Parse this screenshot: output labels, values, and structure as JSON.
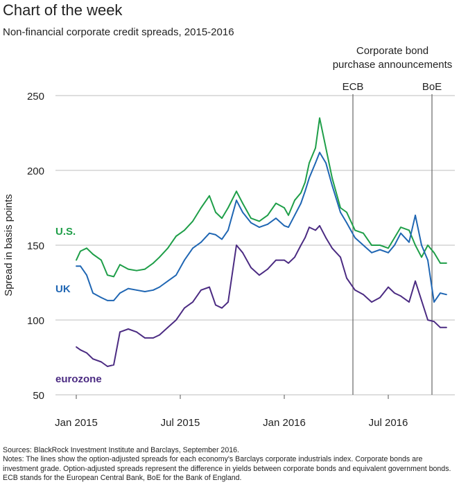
{
  "header": {
    "title": "Chart of the week",
    "subtitle": "Non-financial corporate credit spreads, 2015-2016"
  },
  "annotation": {
    "heading_line1": "Corporate bond",
    "heading_line2": "purchase announcements",
    "markers": [
      {
        "label": "ECB",
        "x": 2016.33
      },
      {
        "label": "BoE",
        "x": 2016.71
      }
    ]
  },
  "footer": {
    "sources": "Sources: BlackRock Investment Institute and Barclays, September 2016.",
    "notes": "Notes: The lines show the option-adjusted spreads for each economy's Barclays corporate industrials index. Corporate bonds are investment grade. Option-adjusted spreads represent the difference in yields between corporate bonds and equivalent government bonds. ECB stands for the European Central Bank, BoE for the Bank of England."
  },
  "chart_data": {
    "type": "line",
    "title": "Chart of the week",
    "subtitle": "Non-financial corporate credit spreads, 2015-2016",
    "xlabel": "",
    "ylabel": "Spread in basis points",
    "xlim": [
      2014.9,
      2016.82
    ],
    "ylim": [
      50,
      250
    ],
    "yticks": [
      50,
      100,
      150,
      200,
      250
    ],
    "xticks": [
      {
        "value": 2015.0,
        "label": "Jan 2015"
      },
      {
        "value": 2015.5,
        "label": "Jul 2015"
      },
      {
        "value": 2016.0,
        "label": "Jan 2016"
      },
      {
        "value": 2016.5,
        "label": "Jul 2016"
      }
    ],
    "grid": "horizontal",
    "series": [
      {
        "name": "U.S.",
        "color": "#1e9e48",
        "x": [
          2015.0,
          2015.02,
          2015.05,
          2015.08,
          2015.12,
          2015.15,
          2015.18,
          2015.21,
          2015.25,
          2015.29,
          2015.33,
          2015.37,
          2015.4,
          2015.44,
          2015.48,
          2015.52,
          2015.56,
          2015.6,
          2015.64,
          2015.67,
          2015.7,
          2015.73,
          2015.77,
          2015.8,
          2015.84,
          2015.88,
          2015.92,
          2015.96,
          2016.0,
          2016.02,
          2016.05,
          2016.08,
          2016.1,
          2016.12,
          2016.15,
          2016.17,
          2016.2,
          2016.23,
          2016.27,
          2016.3,
          2016.34,
          2016.38,
          2016.42,
          2016.46,
          2016.5,
          2016.53,
          2016.56,
          2016.6,
          2016.63,
          2016.66,
          2016.69,
          2016.72,
          2016.75,
          2016.78
        ],
        "values": [
          140,
          146,
          148,
          144,
          140,
          130,
          129,
          137,
          134,
          133,
          134,
          138,
          142,
          148,
          156,
          160,
          166,
          175,
          183,
          172,
          168,
          175,
          186,
          178,
          168,
          166,
          170,
          178,
          175,
          170,
          180,
          185,
          192,
          205,
          215,
          235,
          215,
          195,
          175,
          172,
          160,
          158,
          150,
          150,
          148,
          155,
          162,
          160,
          150,
          142,
          150,
          145,
          138,
          138
        ]
      },
      {
        "name": "UK",
        "color": "#1f66b3",
        "x": [
          2015.0,
          2015.02,
          2015.05,
          2015.08,
          2015.12,
          2015.15,
          2015.18,
          2015.21,
          2015.25,
          2015.29,
          2015.33,
          2015.37,
          2015.4,
          2015.44,
          2015.48,
          2015.52,
          2015.56,
          2015.6,
          2015.64,
          2015.67,
          2015.7,
          2015.73,
          2015.77,
          2015.8,
          2015.84,
          2015.88,
          2015.92,
          2015.96,
          2016.0,
          2016.02,
          2016.05,
          2016.08,
          2016.1,
          2016.12,
          2016.15,
          2016.17,
          2016.2,
          2016.23,
          2016.27,
          2016.3,
          2016.34,
          2016.38,
          2016.42,
          2016.46,
          2016.5,
          2016.53,
          2016.56,
          2016.6,
          2016.63,
          2016.66,
          2016.69,
          2016.72,
          2016.75,
          2016.78
        ],
        "values": [
          136,
          136,
          130,
          118,
          115,
          113,
          113,
          118,
          121,
          120,
          119,
          120,
          122,
          126,
          130,
          140,
          148,
          152,
          158,
          157,
          154,
          160,
          180,
          172,
          165,
          162,
          164,
          168,
          163,
          162,
          170,
          178,
          186,
          195,
          205,
          212,
          205,
          190,
          172,
          165,
          155,
          150,
          145,
          147,
          145,
          150,
          158,
          152,
          170,
          150,
          140,
          112,
          118,
          117
        ]
      },
      {
        "name": "eurozone",
        "color": "#4b2b82",
        "x": [
          2015.0,
          2015.02,
          2015.05,
          2015.08,
          2015.12,
          2015.15,
          2015.18,
          2015.21,
          2015.25,
          2015.29,
          2015.33,
          2015.37,
          2015.4,
          2015.44,
          2015.48,
          2015.52,
          2015.56,
          2015.6,
          2015.64,
          2015.67,
          2015.7,
          2015.73,
          2015.77,
          2015.8,
          2015.84,
          2015.88,
          2015.92,
          2015.96,
          2016.0,
          2016.02,
          2016.05,
          2016.08,
          2016.1,
          2016.12,
          2016.15,
          2016.17,
          2016.2,
          2016.23,
          2016.27,
          2016.3,
          2016.34,
          2016.38,
          2016.42,
          2016.46,
          2016.5,
          2016.53,
          2016.56,
          2016.6,
          2016.63,
          2016.66,
          2016.69,
          2016.72,
          2016.75,
          2016.78
        ],
        "values": [
          82,
          80,
          78,
          74,
          72,
          69,
          70,
          92,
          94,
          92,
          88,
          88,
          90,
          95,
          100,
          108,
          112,
          120,
          122,
          110,
          108,
          112,
          150,
          145,
          135,
          130,
          134,
          140,
          140,
          138,
          142,
          150,
          155,
          162,
          160,
          163,
          155,
          148,
          142,
          128,
          120,
          117,
          112,
          115,
          122,
          118,
          116,
          112,
          126,
          113,
          100,
          99,
          95,
          95
        ]
      }
    ]
  }
}
